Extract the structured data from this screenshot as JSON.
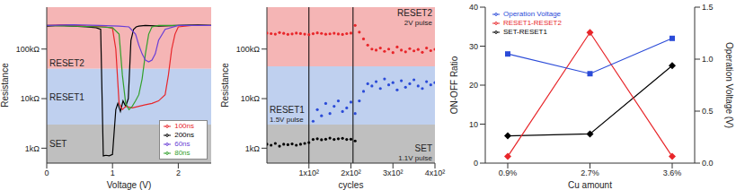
{
  "chart_data": [
    {
      "type": "line",
      "x_label": "Voltage (V)",
      "y_label": "Resistance",
      "xlim": [
        0,
        2.5
      ],
      "xticks": [
        0,
        1,
        2
      ],
      "ylim": [
        500,
        700000
      ],
      "yticks": [
        {
          "value": 1000,
          "label": "1kΩ"
        },
        {
          "value": 10000,
          "label": "10kΩ"
        },
        {
          "value": 100000,
          "label": "100kΩ"
        }
      ],
      "log": "y",
      "legend": "lower right",
      "regions": [
        {
          "label": "RESET2",
          "range": [
            40000,
            700000
          ],
          "color": "#f5b5b5"
        },
        {
          "label": "RESET1",
          "range": [
            3000,
            40000
          ],
          "color": "#bfd0ef"
        },
        {
          "label": "SET",
          "range": [
            500,
            3000
          ],
          "color": "#bfbfbf"
        }
      ],
      "series": [
        {
          "name": "200ns",
          "color": "#000000",
          "x": [
            0,
            0.2,
            0.4,
            0.6,
            0.75,
            0.82,
            0.86,
            0.9,
            0.95,
            1.0,
            1.05,
            1.08,
            1.12,
            1.16,
            1.2,
            1.24,
            1.28,
            1.32,
            1.36,
            1.4,
            1.5,
            1.7,
            2.0,
            2.3,
            2.5
          ],
          "values": [
            290000,
            300000,
            290000,
            280000,
            270000,
            250000,
            700,
            720,
            700,
            750,
            6000,
            8000,
            5500,
            9000,
            7000,
            10000,
            150000,
            250000,
            280000,
            290000,
            300000,
            290000,
            300000,
            310000,
            300000
          ]
        },
        {
          "name": "100ns",
          "color": "#e8262a",
          "x": [
            0,
            0.3,
            0.6,
            0.9,
            1.0,
            1.05,
            1.1,
            1.15,
            1.2,
            1.3,
            1.4,
            1.5,
            1.6,
            1.7,
            1.8,
            1.85,
            1.9,
            1.95,
            2.0,
            2.2,
            2.5
          ],
          "values": [
            300000,
            310000,
            290000,
            280000,
            260000,
            100000,
            8000,
            6000,
            7000,
            6500,
            7000,
            7500,
            8000,
            9000,
            12000,
            30000,
            100000,
            200000,
            280000,
            300000,
            300000
          ]
        },
        {
          "name": "80ns",
          "color": "#33a02c",
          "x": [
            0,
            0.4,
            0.8,
            1.0,
            1.1,
            1.15,
            1.2,
            1.25,
            1.3,
            1.35,
            1.4,
            1.45,
            1.5,
            1.55,
            1.6,
            1.7,
            2.0,
            2.5
          ],
          "values": [
            300000,
            290000,
            280000,
            270000,
            200000,
            30000,
            8000,
            6000,
            7000,
            9000,
            12000,
            25000,
            80000,
            200000,
            280000,
            300000,
            300000,
            300000
          ]
        },
        {
          "name": "60ns",
          "color": "#6a3fd6",
          "x": [
            0,
            0.4,
            0.8,
            1.1,
            1.25,
            1.35,
            1.4,
            1.45,
            1.5,
            1.55,
            1.6,
            1.65,
            1.7,
            1.8,
            2.0,
            2.5
          ],
          "values": [
            300000,
            310000,
            300000,
            290000,
            280000,
            200000,
            120000,
            80000,
            60000,
            55000,
            60000,
            80000,
            150000,
            250000,
            300000,
            300000
          ]
        }
      ]
    },
    {
      "type": "scatter",
      "x_label": "cycles",
      "y_label": "Resistance",
      "xlim": [
        0,
        400
      ],
      "xticks": [
        {
          "value": 100,
          "label": "1x10²"
        },
        {
          "value": 200,
          "label": "2x10²"
        },
        {
          "value": 300,
          "label": "3x10²"
        },
        {
          "value": 400,
          "label": "4x10²"
        }
      ],
      "ylim": [
        500,
        700000
      ],
      "yticks": [
        {
          "value": 1000,
          "label": "1kΩ"
        },
        {
          "value": 10000,
          "label": "10kΩ"
        },
        {
          "value": 100000,
          "label": "100kΩ"
        }
      ],
      "log": "y",
      "vlines": [
        100,
        205
      ],
      "regions": [
        {
          "label": "RESET2",
          "sublabel": "2V pulse",
          "range": [
            45000,
            700000
          ],
          "color": "#f5b5b5"
        },
        {
          "label": "RESET1",
          "sublabel": "1.5V pulse",
          "range": [
            3000,
            45000
          ],
          "color": "#bfd0ef"
        },
        {
          "label": "SET",
          "sublabel": "1.1V pulse",
          "range": [
            500,
            3000
          ],
          "color": "#bfbfbf"
        }
      ],
      "series": [
        {
          "color": "#e8262a",
          "x": [
            0,
            10,
            20,
            30,
            40,
            50,
            60,
            70,
            80,
            90,
            100,
            110,
            120,
            130,
            140,
            150,
            160,
            170,
            180,
            190,
            200,
            210,
            220,
            230,
            240,
            250,
            260,
            270,
            280,
            290,
            300,
            310,
            320,
            330,
            340,
            350,
            360,
            370,
            380,
            390,
            400
          ],
          "values": [
            210000,
            205000,
            200000,
            215000,
            208000,
            198000,
            202000,
            210000,
            206000,
            200000,
            195000,
            204000,
            212000,
            207000,
            199000,
            203000,
            209000,
            201000,
            197000,
            205000,
            210000,
            300000,
            220000,
            160000,
            120000,
            100000,
            95000,
            105000,
            90000,
            100000,
            85000,
            110000,
            95000,
            88000,
            102000,
            92000,
            98000,
            86000,
            105000,
            93000,
            99000
          ]
        },
        {
          "color": "#2b4bd8",
          "x": [
            110,
            120,
            130,
            140,
            150,
            160,
            170,
            180,
            190,
            200,
            210,
            220,
            230,
            240,
            250,
            260,
            270,
            280,
            290,
            300,
            310,
            320,
            330,
            340,
            350,
            360,
            370,
            380,
            390,
            400
          ],
          "values": [
            3500,
            6000,
            4500,
            8000,
            5000,
            7000,
            9000,
            5500,
            6500,
            8500,
            5000,
            9000,
            14000,
            20000,
            18000,
            22000,
            16000,
            25000,
            19000,
            21000,
            15000,
            23000,
            17000,
            20000,
            24000,
            18000,
            16000,
            22000,
            19000,
            21000
          ]
        },
        {
          "color": "#000000",
          "x": [
            0,
            10,
            20,
            30,
            40,
            50,
            60,
            70,
            80,
            90,
            100,
            110,
            120,
            130,
            140,
            150,
            160,
            170,
            180,
            190,
            200,
            210
          ],
          "values": [
            1200,
            1150,
            1250,
            1100,
            1200,
            1180,
            1220,
            1150,
            1200,
            1250,
            1300,
            1500,
            1550,
            1480,
            1520,
            1600,
            1500,
            1550,
            1580,
            1500,
            1520,
            1400
          ]
        }
      ]
    },
    {
      "type": "line",
      "x_label": "Cu amount",
      "y_label": "ON-OFF Ratio",
      "y2_label": "Operation Voltage (V)",
      "categories": [
        "0.9%",
        "2.7%",
        "3.6%"
      ],
      "ylim": [
        0,
        40
      ],
      "yticks": [
        0,
        10,
        20,
        30,
        40
      ],
      "y2lim": [
        0,
        1.5
      ],
      "y2ticks": [
        {
          "value": 0,
          "label": "0.0"
        },
        0.5,
        {
          "value": 1,
          "label": "1.0"
        },
        1.5
      ],
      "legend": "upper left",
      "series": [
        {
          "name": "SET-RESET1",
          "color": "#000000",
          "marker": "diamond",
          "values": [
            7,
            7.5,
            25
          ]
        },
        {
          "name": "RESET1-RESET2",
          "color": "#e8262a",
          "marker": "diamond",
          "values": [
            1.7,
            33.5,
            1.7
          ]
        },
        {
          "name": "Operation Voltage",
          "color": "#2b4bd8",
          "marker": "square",
          "axis": "y2",
          "values": [
            1.05,
            0.86,
            1.2
          ]
        }
      ]
    }
  ]
}
